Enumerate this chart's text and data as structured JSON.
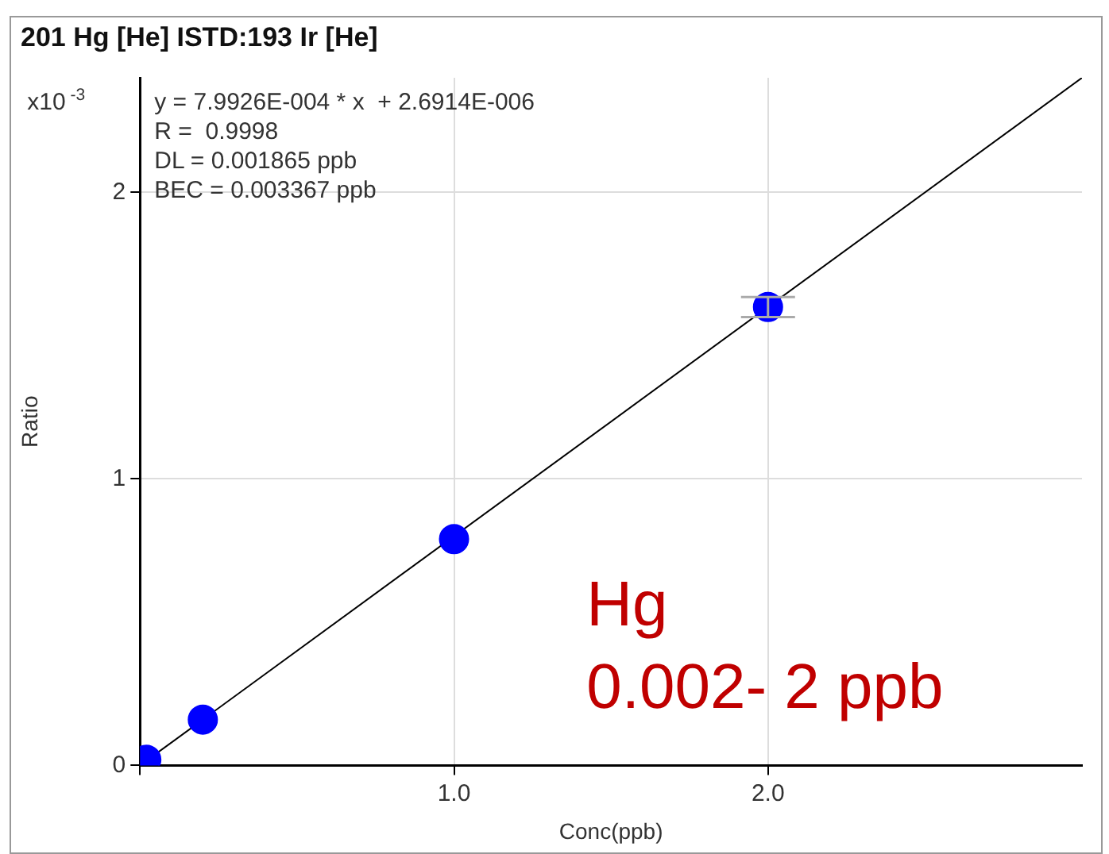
{
  "chart_data": {
    "type": "scatter",
    "title": "201 Hg [He] ISTD:193 Ir [He]",
    "xlabel": "Conc(ppb)",
    "ylabel": "Ratio",
    "xlim": [
      0,
      3.0
    ],
    "ylim": [
      0,
      2.4
    ],
    "xticks": [
      {
        "value": 0,
        "label": null
      },
      {
        "value": 1,
        "label": "1.0"
      },
      {
        "value": 2,
        "label": "2.0"
      }
    ],
    "yticks": [
      0,
      1,
      2
    ],
    "grid": true,
    "marker": "circle",
    "series": [
      {
        "color": "#0000ff",
        "x": [
          0.02,
          0.2,
          1,
          2
        ],
        "values": [
          0.02,
          0.16,
          0.79,
          1.6
        ],
        "errors": [
          null,
          null,
          null,
          0.035
        ]
      },
      {
        "type": "line",
        "color": "#000000",
        "marker": "none",
        "x": [
          0,
          3.0
        ],
        "values": [
          0,
          2.4
        ]
      }
    ],
    "annotations": [
      "x10$^{-3}$",
      "y = 7.9926E-004 * x  + 2.6914E-006",
      "R =  0.9998",
      "DL = 0.001865 ppb",
      "BEC = 0.003367 ppb",
      "Hg",
      "0.002- 2 ppb"
    ]
  }
}
